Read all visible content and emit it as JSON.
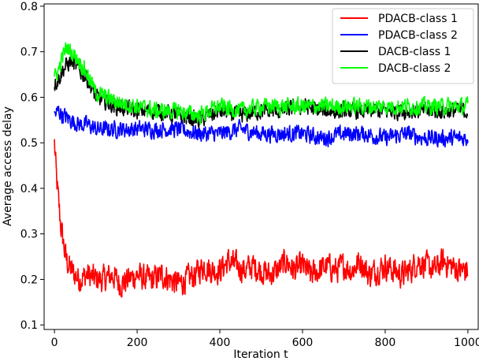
{
  "chart_data": {
    "type": "line",
    "title": "",
    "xlabel": "Iteration t",
    "ylabel": "Average access delay",
    "xlim": [
      -25,
      1025
    ],
    "ylim": [
      0.09,
      0.805
    ],
    "xticks": [
      0,
      200,
      400,
      600,
      800,
      1000
    ],
    "yticks": [
      0.1,
      0.2,
      0.3,
      0.4,
      0.5,
      0.6,
      0.7,
      0.8
    ],
    "xtick_labels": [
      "0",
      "200",
      "400",
      "600",
      "800",
      "1000"
    ],
    "ytick_labels": [
      "0.1",
      "0.2",
      "0.3",
      "0.4",
      "0.5",
      "0.6",
      "0.7",
      "0.8"
    ],
    "grid": false,
    "legend_position": "top-right",
    "series": [
      {
        "name": "PDACB-class 1",
        "color": "#ff0000",
        "x": [
          0,
          5,
          10,
          15,
          20,
          25,
          30,
          40,
          50,
          60,
          80,
          100,
          120,
          140,
          160,
          180,
          200,
          220,
          240,
          260,
          280,
          300,
          320,
          340,
          360,
          380,
          400,
          420,
          440,
          460,
          480,
          500,
          520,
          540,
          560,
          580,
          600,
          620,
          640,
          660,
          680,
          700,
          720,
          740,
          760,
          780,
          800,
          820,
          840,
          860,
          880,
          900,
          920,
          940,
          960,
          980,
          1000
        ],
        "y": [
          0.5,
          0.42,
          0.37,
          0.32,
          0.29,
          0.26,
          0.24,
          0.22,
          0.21,
          0.2,
          0.21,
          0.2,
          0.2,
          0.21,
          0.19,
          0.2,
          0.21,
          0.2,
          0.2,
          0.21,
          0.2,
          0.19,
          0.2,
          0.21,
          0.23,
          0.22,
          0.22,
          0.24,
          0.23,
          0.22,
          0.23,
          0.22,
          0.21,
          0.22,
          0.24,
          0.22,
          0.23,
          0.21,
          0.22,
          0.23,
          0.22,
          0.23,
          0.22,
          0.24,
          0.21,
          0.22,
          0.23,
          0.22,
          0.21,
          0.22,
          0.24,
          0.23,
          0.22,
          0.24,
          0.23,
          0.22,
          0.22
        ],
        "noise": 0.04
      },
      {
        "name": "PDACB-class 2",
        "color": "#0000ff",
        "x": [
          0,
          10,
          20,
          40,
          60,
          80,
          100,
          150,
          200,
          250,
          300,
          350,
          400,
          450,
          500,
          550,
          600,
          650,
          700,
          750,
          800,
          850,
          900,
          950,
          1000
        ],
        "y": [
          0.56,
          0.57,
          0.56,
          0.55,
          0.54,
          0.54,
          0.53,
          0.53,
          0.53,
          0.53,
          0.53,
          0.52,
          0.52,
          0.53,
          0.52,
          0.52,
          0.52,
          0.51,
          0.52,
          0.52,
          0.51,
          0.52,
          0.51,
          0.51,
          0.51
        ],
        "noise": 0.025
      },
      {
        "name": "DACB-class 1",
        "color": "#000000",
        "x": [
          0,
          10,
          20,
          40,
          60,
          80,
          100,
          150,
          200,
          250,
          300,
          350,
          400,
          450,
          500,
          550,
          600,
          650,
          700,
          750,
          800,
          850,
          900,
          950,
          1000
        ],
        "y": [
          0.63,
          0.64,
          0.66,
          0.68,
          0.66,
          0.64,
          0.6,
          0.58,
          0.57,
          0.57,
          0.56,
          0.55,
          0.57,
          0.56,
          0.57,
          0.57,
          0.58,
          0.57,
          0.57,
          0.57,
          0.57,
          0.57,
          0.57,
          0.57,
          0.57
        ],
        "noise": 0.025
      },
      {
        "name": "DACB-class 2",
        "color": "#00ff00",
        "x": [
          0,
          10,
          20,
          30,
          40,
          60,
          80,
          100,
          150,
          200,
          250,
          300,
          350,
          400,
          450,
          500,
          550,
          600,
          650,
          700,
          750,
          800,
          850,
          900,
          950,
          1000
        ],
        "y": [
          0.64,
          0.66,
          0.69,
          0.71,
          0.7,
          0.68,
          0.65,
          0.61,
          0.59,
          0.58,
          0.57,
          0.57,
          0.56,
          0.58,
          0.57,
          0.58,
          0.58,
          0.58,
          0.58,
          0.58,
          0.58,
          0.58,
          0.58,
          0.58,
          0.58,
          0.58
        ],
        "noise": 0.025
      }
    ]
  }
}
